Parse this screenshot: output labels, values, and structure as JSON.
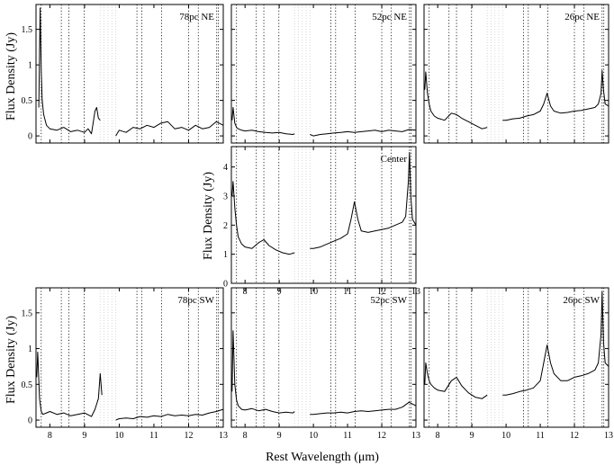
{
  "figure": {
    "xlabel": "Rest Wavelength (μm)",
    "ylabel": "Flux Density (Jy)",
    "colors": {
      "line": "#000000",
      "frame": "#000000",
      "gap_band": "#cfcfcf"
    }
  },
  "chart_data": {
    "type": "line",
    "xlim": [
      7.6,
      13.0
    ],
    "x_ticks": [
      8,
      9,
      10,
      11,
      12,
      13
    ],
    "feature_lines_um": [
      7.75,
      8.33,
      8.55,
      8.99,
      10.51,
      10.65,
      11.22,
      12.0,
      12.28,
      12.81,
      12.86
    ],
    "masked_range_um": [
      9.45,
      9.9
    ],
    "grid": false,
    "panels": [
      {
        "label": "78pc NE",
        "position": "top-left",
        "ylim": [
          -0.1,
          1.85
        ],
        "y_ticks": [
          0,
          0.5,
          1,
          1.5
        ],
        "y_tick_labels": [
          "0",
          "0.5",
          "1",
          "1.5"
        ],
        "segments": [
          {
            "x": [
              7.68,
              7.72,
              7.75,
              7.78,
              7.82,
              7.9,
              8.0,
              8.2,
              8.4,
              8.6,
              8.8,
              9.0,
              9.1,
              9.2,
              9.3,
              9.35,
              9.4,
              9.45
            ],
            "y": [
              0.4,
              1.8,
              0.9,
              0.5,
              0.3,
              0.15,
              0.1,
              0.08,
              0.12,
              0.06,
              0.08,
              0.05,
              0.1,
              0.03,
              0.35,
              0.4,
              0.25,
              0.22
            ]
          },
          {
            "x": [
              9.9,
              10.0,
              10.2,
              10.4,
              10.6,
              10.8,
              11.0,
              11.2,
              11.4,
              11.6,
              11.8,
              12.0,
              12.2,
              12.4,
              12.6,
              12.8,
              13.0
            ],
            "y": [
              0.0,
              0.08,
              0.05,
              0.12,
              0.1,
              0.15,
              0.12,
              0.18,
              0.2,
              0.1,
              0.12,
              0.08,
              0.15,
              0.1,
              0.12,
              0.2,
              0.15
            ]
          }
        ]
      },
      {
        "label": "52pc NE",
        "position": "top-center",
        "ylim": [
          -0.1,
          1.85
        ],
        "y_ticks": [
          0,
          0.5,
          1,
          1.5
        ],
        "y_tick_labels": [
          "0",
          "0.5",
          "1",
          "1.5"
        ],
        "segments": [
          {
            "x": [
              7.62,
              7.65,
              7.7,
              7.75,
              7.8,
              7.9,
              8.0,
              8.2,
              8.4,
              8.6,
              8.8,
              9.0,
              9.2,
              9.4,
              9.45
            ],
            "y": [
              0.22,
              0.4,
              0.18,
              0.12,
              0.1,
              0.08,
              0.07,
              0.08,
              0.06,
              0.05,
              0.04,
              0.05,
              0.03,
              0.02,
              0.03
            ]
          },
          {
            "x": [
              9.9,
              10.0,
              10.2,
              10.4,
              10.6,
              10.8,
              11.0,
              11.2,
              11.4,
              11.6,
              11.8,
              12.0,
              12.2,
              12.4,
              12.6,
              12.8,
              13.0
            ],
            "y": [
              0.02,
              0.0,
              0.02,
              0.03,
              0.04,
              0.05,
              0.06,
              0.05,
              0.06,
              0.07,
              0.08,
              0.06,
              0.08,
              0.07,
              0.06,
              0.09,
              0.08
            ]
          }
        ]
      },
      {
        "label": "26pc NE",
        "position": "top-right",
        "ylim": [
          -0.1,
          1.85
        ],
        "y_ticks": [
          0,
          0.5,
          1,
          1.5
        ],
        "y_tick_labels": [
          "0",
          "0.5",
          "1",
          "1.5"
        ],
        "segments": [
          {
            "x": [
              7.62,
              7.65,
              7.7,
              7.75,
              7.8,
              7.9,
              8.0,
              8.2,
              8.4,
              8.55,
              8.7,
              8.9,
              9.1,
              9.3,
              9.45
            ],
            "y": [
              0.65,
              0.9,
              0.6,
              0.45,
              0.35,
              0.28,
              0.25,
              0.22,
              0.32,
              0.3,
              0.25,
              0.2,
              0.15,
              0.1,
              0.12
            ]
          },
          {
            "x": [
              9.9,
              10.0,
              10.2,
              10.4,
              10.6,
              10.8,
              11.0,
              11.1,
              11.2,
              11.3,
              11.4,
              11.6,
              11.8,
              12.0,
              12.2,
              12.4,
              12.6,
              12.7,
              12.78,
              12.81,
              12.85,
              12.9,
              13.0
            ],
            "y": [
              0.22,
              0.22,
              0.24,
              0.25,
              0.28,
              0.3,
              0.35,
              0.45,
              0.6,
              0.42,
              0.35,
              0.32,
              0.33,
              0.35,
              0.36,
              0.38,
              0.4,
              0.45,
              0.6,
              0.92,
              0.65,
              0.45,
              0.42
            ]
          }
        ]
      },
      {
        "label": "Center",
        "position": "middle-center",
        "ylim": [
          0,
          4.7
        ],
        "y_ticks": [
          0,
          1,
          2,
          3,
          4
        ],
        "y_tick_labels": [
          "0",
          "1",
          "2",
          "3",
          "4"
        ],
        "segments": [
          {
            "x": [
              7.62,
              7.65,
              7.7,
              7.75,
              7.8,
              7.9,
              8.0,
              8.2,
              8.4,
              8.55,
              8.7,
              8.9,
              9.1,
              9.3,
              9.45
            ],
            "y": [
              3.0,
              3.5,
              2.6,
              2.0,
              1.6,
              1.35,
              1.25,
              1.2,
              1.4,
              1.5,
              1.3,
              1.15,
              1.05,
              1.0,
              1.05
            ]
          },
          {
            "x": [
              9.9,
              10.0,
              10.2,
              10.4,
              10.6,
              10.8,
              11.0,
              11.1,
              11.2,
              11.3,
              11.4,
              11.6,
              11.8,
              12.0,
              12.2,
              12.4,
              12.6,
              12.7,
              12.78,
              12.81,
              12.85,
              12.9,
              13.0
            ],
            "y": [
              1.2,
              1.2,
              1.25,
              1.35,
              1.45,
              1.55,
              1.7,
              2.2,
              2.8,
              2.2,
              1.8,
              1.75,
              1.8,
              1.85,
              1.9,
              2.0,
              2.1,
              2.3,
              3.5,
              4.5,
              3.0,
              2.2,
              2.0
            ]
          }
        ]
      },
      {
        "label": "78pc SW",
        "position": "bottom-left",
        "ylim": [
          -0.1,
          1.85
        ],
        "y_ticks": [
          0,
          0.5,
          1,
          1.5
        ],
        "y_tick_labels": [
          "0",
          "0.5",
          "1",
          "1.5"
        ],
        "segments": [
          {
            "x": [
              7.62,
              7.65,
              7.7,
              7.75,
              7.8,
              7.9,
              8.0,
              8.2,
              8.4,
              8.6,
              8.8,
              9.0,
              9.2,
              9.3,
              9.4,
              9.45,
              9.5
            ],
            "y": [
              0.6,
              0.95,
              0.3,
              0.12,
              0.08,
              0.1,
              0.12,
              0.08,
              0.1,
              0.06,
              0.08,
              0.1,
              0.05,
              0.15,
              0.3,
              0.65,
              0.35
            ]
          },
          {
            "x": [
              9.9,
              10.0,
              10.2,
              10.4,
              10.6,
              10.8,
              11.0,
              11.2,
              11.4,
              11.6,
              11.8,
              12.0,
              12.2,
              12.4,
              12.6,
              12.8,
              13.0
            ],
            "y": [
              0.0,
              0.02,
              0.03,
              0.02,
              0.05,
              0.04,
              0.06,
              0.05,
              0.08,
              0.06,
              0.07,
              0.06,
              0.08,
              0.07,
              0.1,
              0.12,
              0.15
            ]
          }
        ]
      },
      {
        "label": "52pc SW",
        "position": "bottom-center",
        "ylim": [
          -0.1,
          1.85
        ],
        "y_ticks": [
          0,
          0.5,
          1,
          1.5
        ],
        "y_tick_labels": [
          "0",
          "0.5",
          "1",
          "1.5"
        ],
        "segments": [
          {
            "x": [
              7.62,
              7.65,
              7.7,
              7.75,
              7.8,
              7.9,
              8.0,
              8.2,
              8.4,
              8.6,
              8.8,
              9.0,
              9.2,
              9.4,
              9.45
            ],
            "y": [
              0.4,
              1.25,
              0.5,
              0.28,
              0.2,
              0.15,
              0.14,
              0.16,
              0.13,
              0.15,
              0.12,
              0.1,
              0.11,
              0.1,
              0.12
            ]
          },
          {
            "x": [
              9.9,
              10.0,
              10.2,
              10.4,
              10.6,
              10.8,
              11.0,
              11.2,
              11.4,
              11.6,
              11.8,
              12.0,
              12.2,
              12.4,
              12.6,
              12.8,
              13.0
            ],
            "y": [
              0.08,
              0.08,
              0.09,
              0.1,
              0.1,
              0.11,
              0.1,
              0.12,
              0.13,
              0.12,
              0.13,
              0.14,
              0.15,
              0.15,
              0.18,
              0.25,
              0.2
            ]
          }
        ]
      },
      {
        "label": "26pc SW",
        "position": "bottom-right",
        "ylim": [
          -0.1,
          1.85
        ],
        "y_ticks": [
          0,
          0.5,
          1,
          1.5
        ],
        "y_tick_labels": [
          "0",
          "0.5",
          "1",
          "1.5"
        ],
        "segments": [
          {
            "x": [
              7.62,
              7.65,
              7.7,
              7.75,
              7.8,
              7.9,
              8.0,
              8.2,
              8.4,
              8.55,
              8.7,
              8.9,
              9.1,
              9.3,
              9.45
            ],
            "y": [
              0.5,
              0.8,
              0.65,
              0.55,
              0.5,
              0.45,
              0.42,
              0.4,
              0.55,
              0.6,
              0.48,
              0.38,
              0.32,
              0.3,
              0.35
            ]
          },
          {
            "x": [
              9.9,
              10.0,
              10.2,
              10.4,
              10.6,
              10.8,
              11.0,
              11.1,
              11.2,
              11.3,
              11.4,
              11.6,
              11.8,
              12.0,
              12.2,
              12.4,
              12.6,
              12.7,
              12.78,
              12.81,
              12.85,
              12.9,
              13.0
            ],
            "y": [
              0.35,
              0.35,
              0.37,
              0.4,
              0.42,
              0.45,
              0.55,
              0.8,
              1.05,
              0.8,
              0.65,
              0.55,
              0.55,
              0.6,
              0.62,
              0.65,
              0.7,
              0.8,
              1.2,
              1.8,
              1.1,
              0.8,
              0.75
            ]
          }
        ]
      }
    ]
  }
}
